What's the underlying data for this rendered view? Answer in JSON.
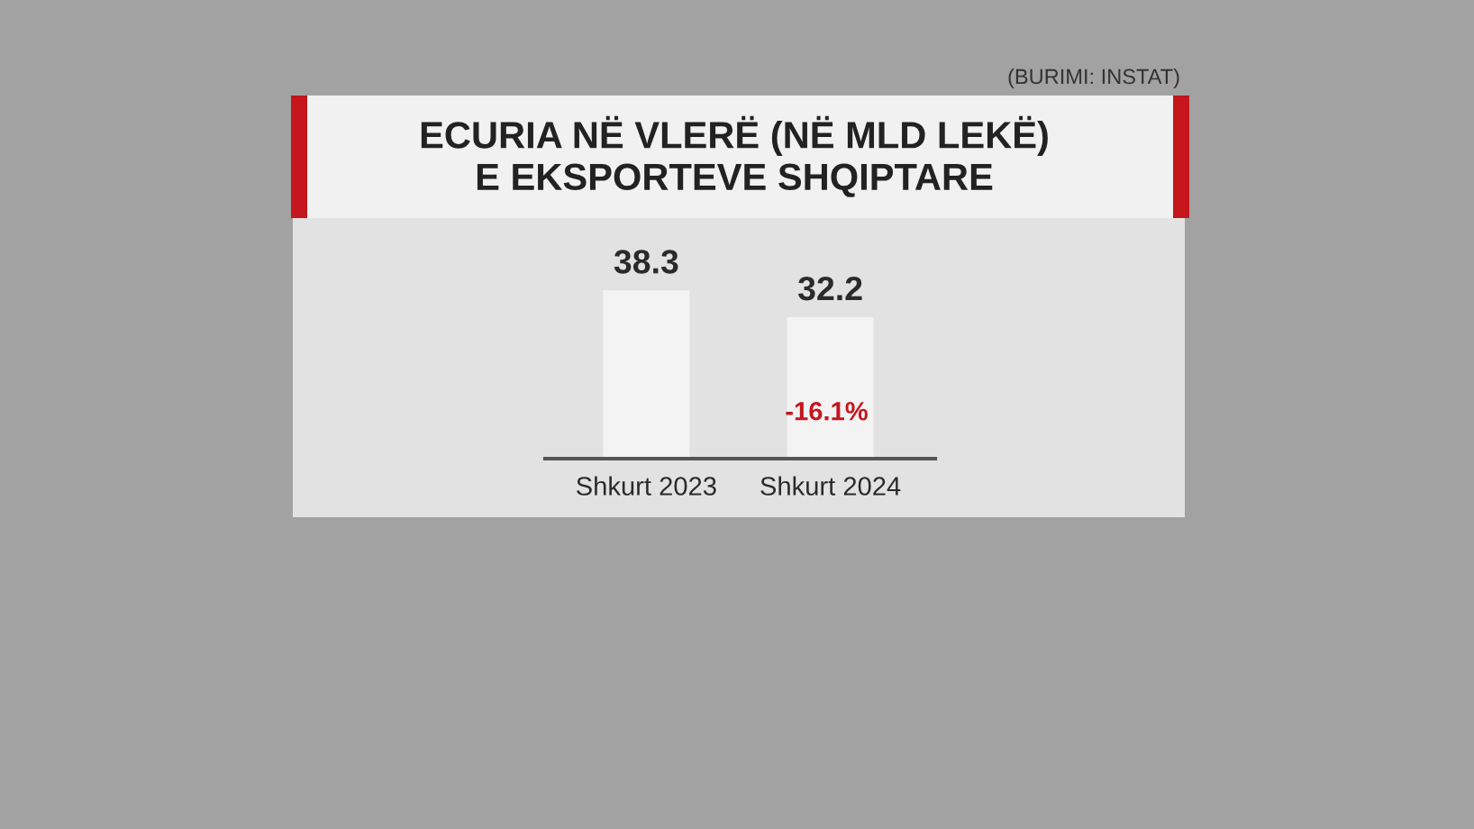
{
  "chart_data": {
    "type": "bar",
    "title": "ECURIA NË VLERË (NË MLD LEKË)\nE EKSPORTEVE SHQIPTARE",
    "categories": [
      "Shkurt 2023",
      "Shkurt 2024"
    ],
    "values": [
      38.3,
      32.2
    ],
    "color": "#f3f3f3",
    "data_labels": true,
    "grid": false,
    "legend": false,
    "annotations": [
      "-16.1%",
      "(BURIMI: INSTAT)"
    ]
  }
}
